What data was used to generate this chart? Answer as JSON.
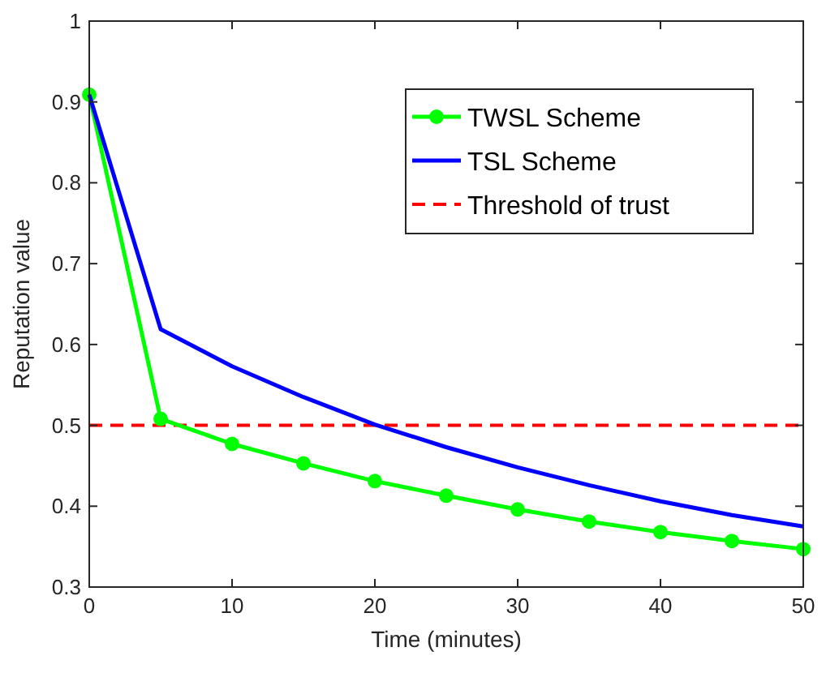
{
  "chart_data": {
    "type": "line",
    "xlabel": "Time (minutes)",
    "ylabel": "Reputation value",
    "x": [
      0,
      5,
      10,
      15,
      20,
      25,
      30,
      35,
      40,
      45,
      50
    ],
    "series": [
      {
        "name": "TWSL Scheme",
        "color": "#00ff00",
        "marker": "circle",
        "values": [
          0.909,
          0.508,
          0.477,
          0.453,
          0.431,
          0.413,
          0.396,
          0.381,
          0.368,
          0.357,
          0.347
        ]
      },
      {
        "name": "TSL Scheme",
        "color": "#0000ff",
        "marker": "none",
        "values": [
          0.909,
          0.619,
          0.573,
          0.535,
          0.501,
          0.473,
          0.448,
          0.426,
          0.406,
          0.389,
          0.375
        ]
      }
    ],
    "ref_lines": [
      {
        "axis": "y",
        "value": 0.5,
        "label": "Threshold of trust",
        "color": "#ff0000",
        "line_style": "dashed"
      }
    ],
    "xlim": [
      0,
      50
    ],
    "xticks": [
      0,
      10,
      20,
      30,
      40,
      50
    ],
    "ylim": [
      0.3,
      1
    ],
    "yticks": [
      0.3,
      0.4,
      0.5,
      0.6,
      0.7,
      0.8,
      0.9,
      1
    ],
    "grid": false,
    "legend": "top right"
  }
}
